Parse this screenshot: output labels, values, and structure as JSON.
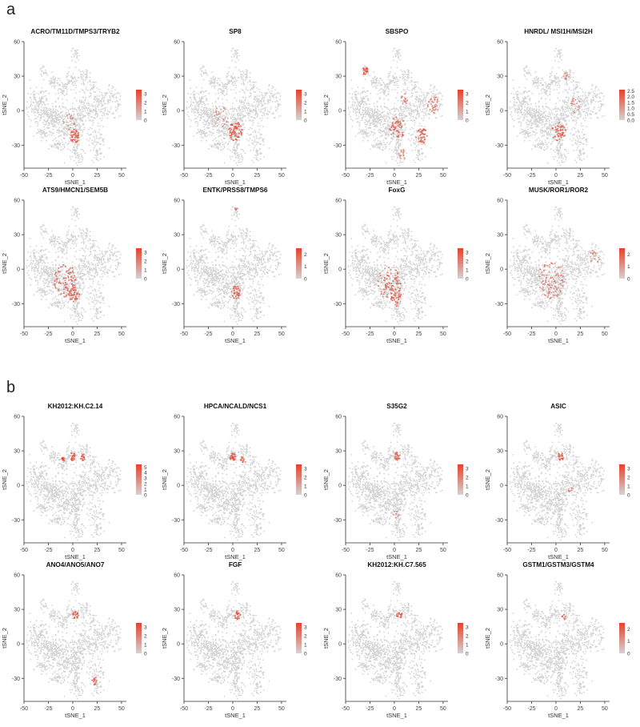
{
  "panels": [
    {
      "letter": "a"
    },
    {
      "letter": "b"
    }
  ],
  "colors": {
    "low": "#d3d3d3",
    "high": "#e8412b"
  },
  "chart_data": [
    {
      "type": "scatter",
      "title": "ACRO/TM11D/TMPS3/TRYB2",
      "xlabel": "tSNE_1",
      "ylabel": "tSNE_2",
      "xlim": [
        -50,
        55
      ],
      "ylim": [
        -50,
        60
      ],
      "xticks": [
        "-50",
        "-25",
        "0",
        "25",
        "50"
      ],
      "yticks": [
        "-30",
        "0",
        "30",
        "60"
      ],
      "legend_ticks": [
        "3",
        "2",
        "1",
        "0"
      ],
      "legend_max": 3.5,
      "hotspots": [
        {
          "x": 2,
          "y": -22,
          "r": 5,
          "n": 45,
          "level": 0.85
        },
        {
          "x": -4,
          "y": -10,
          "r": 6,
          "n": 20,
          "level": 0.5
        }
      ]
    },
    {
      "type": "scatter",
      "title": "SP8",
      "xlabel": "tSNE_1",
      "ylabel": "tSNE_2",
      "xlim": [
        -50,
        55
      ],
      "ylim": [
        -50,
        60
      ],
      "xticks": [
        "-50",
        "-25",
        "0",
        "25",
        "50"
      ],
      "yticks": [
        "-30",
        "0",
        "30",
        "60"
      ],
      "legend_ticks": [
        "3",
        "2",
        "1",
        "0"
      ],
      "legend_max": 3.5,
      "hotspots": [
        {
          "x": 3,
          "y": -18,
          "r": 7,
          "n": 60,
          "level": 0.9
        },
        {
          "x": -12,
          "y": -5,
          "r": 8,
          "n": 25,
          "level": 0.5
        }
      ]
    },
    {
      "type": "scatter",
      "title": "SBSPO",
      "xlabel": "tSNE_1",
      "ylabel": "tSNE_2",
      "xlim": [
        -50,
        55
      ],
      "ylim": [
        -50,
        60
      ],
      "xticks": [
        "-50",
        "-25",
        "0",
        "25",
        "50"
      ],
      "yticks": [
        "-30",
        "0",
        "30",
        "60"
      ],
      "legend_ticks": [
        "3",
        "2",
        "1",
        "0"
      ],
      "legend_max": 3.5,
      "hotspots": [
        {
          "x": -30,
          "y": 35,
          "r": 3,
          "n": 20,
          "level": 0.9
        },
        {
          "x": 28,
          "y": -22,
          "r": 6,
          "n": 45,
          "level": 0.8
        },
        {
          "x": 3,
          "y": -15,
          "r": 8,
          "n": 55,
          "level": 0.8
        },
        {
          "x": 40,
          "y": 5,
          "r": 6,
          "n": 30,
          "level": 0.6
        },
        {
          "x": 10,
          "y": 10,
          "r": 4,
          "n": 15,
          "level": 0.6
        },
        {
          "x": 8,
          "y": -38,
          "r": 4,
          "n": 15,
          "level": 0.6
        }
      ]
    },
    {
      "type": "scatter",
      "title": "HNRDL/ MSI1H/MSI2H",
      "xlabel": "tSNE_1",
      "ylabel": "tSNE_2",
      "xlim": [
        -50,
        55
      ],
      "ylim": [
        -50,
        60
      ],
      "xticks": [
        "-50",
        "-25",
        "0",
        "25",
        "50"
      ],
      "yticks": [
        "-30",
        "0",
        "30",
        "60"
      ],
      "legend_ticks": [
        "2.5",
        "2.0",
        "1.5",
        "1.0",
        "0.5",
        "0.0"
      ],
      "legend_max": 2.6,
      "hotspots": [
        {
          "x": 3,
          "y": -18,
          "r": 7,
          "n": 45,
          "level": 0.8
        },
        {
          "x": 20,
          "y": 5,
          "r": 6,
          "n": 20,
          "level": 0.5
        },
        {
          "x": 10,
          "y": 30,
          "r": 3,
          "n": 10,
          "level": 0.6
        }
      ]
    },
    {
      "type": "scatter",
      "title": "ATS9/HMCN1/SEM5B",
      "xlabel": "tSNE_1",
      "ylabel": "tSNE_2",
      "xlim": [
        -50,
        55
      ],
      "ylim": [
        -50,
        60
      ],
      "xticks": [
        "-50",
        "-25",
        "0",
        "25",
        "50"
      ],
      "yticks": [
        "-30",
        "0",
        "30",
        "60"
      ],
      "legend_ticks": [
        "3",
        "2",
        "1",
        "0"
      ],
      "legend_max": 3.5,
      "hotspots": [
        {
          "x": -8,
          "y": -10,
          "r": 12,
          "n": 90,
          "level": 0.7
        },
        {
          "x": 2,
          "y": -22,
          "r": 6,
          "n": 35,
          "level": 0.85
        }
      ]
    },
    {
      "type": "scatter",
      "title": "ENTK/PRSS8/TMPS6",
      "xlabel": "tSNE_1",
      "ylabel": "tSNE_2",
      "xlim": [
        -50,
        55
      ],
      "ylim": [
        -50,
        60
      ],
      "xticks": [
        "-50",
        "-25",
        "0",
        "25",
        "50"
      ],
      "yticks": [
        "-30",
        "0",
        "30",
        "60"
      ],
      "legend_ticks": [
        "2",
        "1",
        "0"
      ],
      "legend_max": 2.5,
      "hotspots": [
        {
          "x": 3,
          "y": -20,
          "r": 5,
          "n": 35,
          "level": 0.85
        },
        {
          "x": 3,
          "y": 52,
          "r": 2,
          "n": 6,
          "level": 0.7
        }
      ]
    },
    {
      "type": "scatter",
      "title": "FoxG",
      "xlabel": "tSNE_1",
      "ylabel": "tSNE_2",
      "xlim": [
        -50,
        55
      ],
      "ylim": [
        -50,
        60
      ],
      "xticks": [
        "-50",
        "-25",
        "0",
        "25",
        "50"
      ],
      "yticks": [
        "-30",
        "0",
        "30",
        "60"
      ],
      "legend_ticks": [
        "3",
        "2",
        "1",
        "0"
      ],
      "legend_max": 3.5,
      "hotspots": [
        {
          "x": -5,
          "y": -12,
          "r": 12,
          "n": 90,
          "level": 0.7
        },
        {
          "x": 2,
          "y": -25,
          "r": 6,
          "n": 30,
          "level": 0.8
        }
      ]
    },
    {
      "type": "scatter",
      "title": "MUSK/ROR1/ROR2",
      "xlabel": "tSNE_1",
      "ylabel": "tSNE_2",
      "xlim": [
        -50,
        55
      ],
      "ylim": [
        -50,
        60
      ],
      "xticks": [
        "-50",
        "-25",
        "0",
        "25",
        "50"
      ],
      "yticks": [
        "-30",
        "0",
        "30",
        "60"
      ],
      "legend_ticks": [
        "2",
        "1",
        "0"
      ],
      "legend_max": 2.5,
      "hotspots": [
        {
          "x": -5,
          "y": -10,
          "r": 14,
          "n": 90,
          "level": 0.6
        },
        {
          "x": 40,
          "y": 10,
          "r": 6,
          "n": 20,
          "level": 0.5
        }
      ]
    },
    {
      "type": "scatter",
      "title": "KH2012:KH.C2.14",
      "xlabel": "tSNE_1",
      "ylabel": "tSNE_2",
      "xlim": [
        -50,
        55
      ],
      "ylim": [
        -50,
        60
      ],
      "xticks": [
        "-50",
        "-25",
        "0",
        "25",
        "50"
      ],
      "yticks": [
        "-30",
        "0",
        "30",
        "60"
      ],
      "legend_ticks": [
        "5",
        "4",
        "3",
        "2",
        "1",
        "0"
      ],
      "legend_max": 5.5,
      "hotspots": [
        {
          "x": -10,
          "y": 23,
          "r": 2,
          "n": 12,
          "level": 0.95
        },
        {
          "x": 0,
          "y": 25,
          "r": 3,
          "n": 25,
          "level": 0.9
        },
        {
          "x": 10,
          "y": 25,
          "r": 3,
          "n": 15,
          "level": 0.9
        }
      ]
    },
    {
      "type": "scatter",
      "title": "HPCA/NCALD/NCS1",
      "xlabel": "tSNE_1",
      "ylabel": "tSNE_2",
      "xlim": [
        -50,
        55
      ],
      "ylim": [
        -50,
        60
      ],
      "xticks": [
        "-50",
        "-25",
        "0",
        "25",
        "50"
      ],
      "yticks": [
        "-30",
        "0",
        "30",
        "60"
      ],
      "legend_ticks": [
        "3",
        "2",
        "1",
        "0"
      ],
      "legend_max": 3.5,
      "hotspots": [
        {
          "x": 0,
          "y": 25,
          "r": 3,
          "n": 25,
          "level": 0.9
        },
        {
          "x": 10,
          "y": 22,
          "r": 3,
          "n": 12,
          "level": 0.8
        }
      ]
    },
    {
      "type": "scatter",
      "title": "S35G2",
      "xlabel": "tSNE_1",
      "ylabel": "tSNE_2",
      "xlim": [
        -50,
        55
      ],
      "ylim": [
        -50,
        60
      ],
      "xticks": [
        "-50",
        "-25",
        "0",
        "25",
        "50"
      ],
      "yticks": [
        "-30",
        "0",
        "30",
        "60"
      ],
      "legend_ticks": [
        "3",
        "2",
        "1",
        "0"
      ],
      "legend_max": 3.5,
      "hotspots": [
        {
          "x": 3,
          "y": 25,
          "r": 3,
          "n": 18,
          "level": 0.85
        },
        {
          "x": 2,
          "y": -25,
          "r": 3,
          "n": 8,
          "level": 0.6
        }
      ]
    },
    {
      "type": "scatter",
      "title": "ASIC",
      "xlabel": "tSNE_1",
      "ylabel": "tSNE_2",
      "xlim": [
        -50,
        55
      ],
      "ylim": [
        -50,
        60
      ],
      "xticks": [
        "-50",
        "-25",
        "0",
        "25",
        "50"
      ],
      "yticks": [
        "-30",
        "0",
        "30",
        "60"
      ],
      "legend_ticks": [
        "3",
        "2",
        "1",
        "0"
      ],
      "legend_max": 3.5,
      "hotspots": [
        {
          "x": 5,
          "y": 25,
          "r": 3,
          "n": 20,
          "level": 0.85
        },
        {
          "x": 15,
          "y": -5,
          "r": 3,
          "n": 8,
          "level": 0.6
        }
      ]
    },
    {
      "type": "scatter",
      "title": "ANO4/ANO5/ANO7",
      "xlabel": "tSNE_1",
      "ylabel": "tSNE_2",
      "xlim": [
        -50,
        55
      ],
      "ylim": [
        -50,
        60
      ],
      "xticks": [
        "-50",
        "-25",
        "0",
        "25",
        "50"
      ],
      "yticks": [
        "-30",
        "0",
        "30",
        "60"
      ],
      "legend_ticks": [
        "3",
        "2",
        "1",
        "0"
      ],
      "legend_max": 3.5,
      "hotspots": [
        {
          "x": 3,
          "y": 25,
          "r": 3,
          "n": 22,
          "level": 0.9
        },
        {
          "x": 22,
          "y": -32,
          "r": 3,
          "n": 15,
          "level": 0.8
        }
      ]
    },
    {
      "type": "scatter",
      "title": "FGF",
      "xlabel": "tSNE_1",
      "ylabel": "tSNE_2",
      "xlim": [
        -50,
        55
      ],
      "ylim": [
        -50,
        60
      ],
      "xticks": [
        "-50",
        "-25",
        "0",
        "25",
        "50"
      ],
      "yticks": [
        "-30",
        "0",
        "30",
        "60"
      ],
      "legend_ticks": [
        "3",
        "2",
        "1",
        "0"
      ],
      "legend_max": 3.5,
      "hotspots": [
        {
          "x": 5,
          "y": 25,
          "r": 3,
          "n": 22,
          "level": 0.9
        }
      ]
    },
    {
      "type": "scatter",
      "title": "KH2012:KH.C7.565",
      "xlabel": "tSNE_1",
      "ylabel": "tSNE_2",
      "xlim": [
        -50,
        55
      ],
      "ylim": [
        -50,
        60
      ],
      "xticks": [
        "-50",
        "-25",
        "0",
        "25",
        "50"
      ],
      "yticks": [
        "-30",
        "0",
        "30",
        "60"
      ],
      "legend_ticks": [
        "3",
        "2",
        "1",
        "0"
      ],
      "legend_max": 3.5,
      "hotspots": [
        {
          "x": 5,
          "y": 25,
          "r": 3,
          "n": 18,
          "level": 0.85
        }
      ]
    },
    {
      "type": "scatter",
      "title": "GSTM1/GSTM3/GSTM4",
      "xlabel": "tSNE_1",
      "ylabel": "tSNE_2",
      "xlim": [
        -50,
        55
      ],
      "ylim": [
        -50,
        60
      ],
      "xticks": [
        "-50",
        "-25",
        "0",
        "25",
        "50"
      ],
      "yticks": [
        "-30",
        "0",
        "30",
        "60"
      ],
      "legend_ticks": [
        "2",
        "1",
        "0"
      ],
      "legend_max": 2.5,
      "hotspots": [
        {
          "x": 8,
          "y": 23,
          "r": 2,
          "n": 8,
          "level": 0.8
        }
      ]
    }
  ]
}
